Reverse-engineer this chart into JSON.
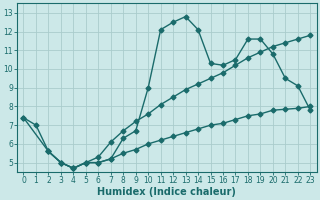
{
  "xlabel": "Humidex (Indice chaleur)",
  "bg_color": "#cce8e8",
  "grid_color": "#aacccc",
  "line_color": "#1a6b6b",
  "xlim": [
    -0.5,
    23.5
  ],
  "ylim": [
    4.5,
    13.5
  ],
  "xticks": [
    0,
    1,
    2,
    3,
    4,
    5,
    6,
    7,
    8,
    9,
    10,
    11,
    12,
    13,
    14,
    15,
    16,
    17,
    18,
    19,
    20,
    21,
    22,
    23
  ],
  "yticks": [
    5,
    6,
    7,
    8,
    9,
    10,
    11,
    12,
    13
  ],
  "line1_x": [
    0,
    1,
    2,
    3,
    4,
    5,
    6,
    7,
    8,
    9,
    10,
    11,
    12,
    13,
    14,
    15,
    16,
    17,
    18,
    19,
    20,
    21,
    22,
    23
  ],
  "line1_y": [
    7.4,
    7.0,
    5.6,
    5.0,
    4.7,
    5.0,
    5.0,
    5.2,
    6.3,
    6.7,
    9.0,
    12.1,
    12.5,
    12.8,
    12.1,
    10.3,
    10.2,
    10.5,
    11.6,
    11.6,
    10.8,
    9.5,
    9.1,
    7.8
  ],
  "line2_x": [
    2,
    3,
    4,
    5,
    6,
    7,
    8,
    9,
    10,
    11,
    12,
    13,
    14,
    15,
    16,
    17,
    18,
    19,
    20,
    21,
    22,
    23
  ],
  "line2_y": [
    5.6,
    5.0,
    4.7,
    5.0,
    5.0,
    5.2,
    5.5,
    5.7,
    6.0,
    6.2,
    6.4,
    6.6,
    6.8,
    7.0,
    7.1,
    7.3,
    7.5,
    7.6,
    7.8,
    7.85,
    7.9,
    8.0
  ],
  "line3_x": [
    0,
    2,
    3,
    4,
    5,
    6,
    7,
    8,
    9,
    10,
    11,
    12,
    13,
    14,
    15,
    16,
    17,
    18,
    19,
    20,
    21,
    22,
    23
  ],
  "line3_y": [
    7.4,
    5.6,
    5.0,
    4.7,
    5.0,
    5.3,
    6.1,
    6.7,
    7.2,
    7.6,
    8.1,
    8.5,
    8.9,
    9.2,
    9.5,
    9.8,
    10.2,
    10.6,
    10.9,
    11.2,
    11.4,
    11.6,
    11.8
  ],
  "marker_size": 2.5,
  "linewidth": 1.0,
  "font_size": 7,
  "tick_font_size": 5.5
}
